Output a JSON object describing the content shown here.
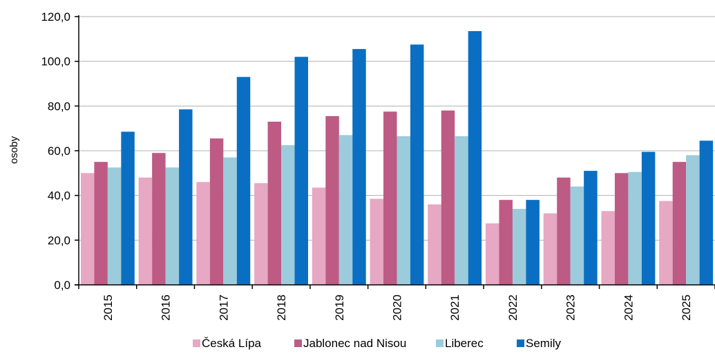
{
  "chart_data": {
    "type": "bar",
    "title": "",
    "ylabel": "osoby",
    "xlabel": "",
    "ylim": [
      0,
      120
    ],
    "y_ticks": [
      "0,0",
      "20,0",
      "40,0",
      "60,0",
      "80,0",
      "100,0",
      "120,0"
    ],
    "categories": [
      "2015",
      "2016",
      "2017",
      "2018",
      "2019",
      "2020",
      "2021",
      "2022",
      "2023",
      "2024",
      "2025"
    ],
    "series": [
      {
        "name": "Česká Lípa",
        "color": "#e6a8c3",
        "values": [
          50,
          48,
          46,
          45.5,
          43.5,
          38.5,
          36,
          27.5,
          32,
          33,
          37.5
        ]
      },
      {
        "name": "Jablonec nad Nisou",
        "color": "#bd5b84",
        "values": [
          55,
          59,
          65.5,
          73,
          75.5,
          77.5,
          78,
          38,
          48,
          50,
          55
        ]
      },
      {
        "name": "Liberec",
        "color": "#9ccbdc",
        "values": [
          52.5,
          52.5,
          57,
          62.5,
          67,
          66.5,
          66.5,
          34,
          44,
          50.5,
          58
        ]
      },
      {
        "name": "Semily",
        "color": "#0a6fc2",
        "values": [
          68.5,
          78.5,
          93,
          102,
          105.5,
          107.5,
          113.5,
          38,
          51,
          59.5,
          64.5
        ]
      }
    ],
    "grid": true,
    "legend": "bottom"
  }
}
